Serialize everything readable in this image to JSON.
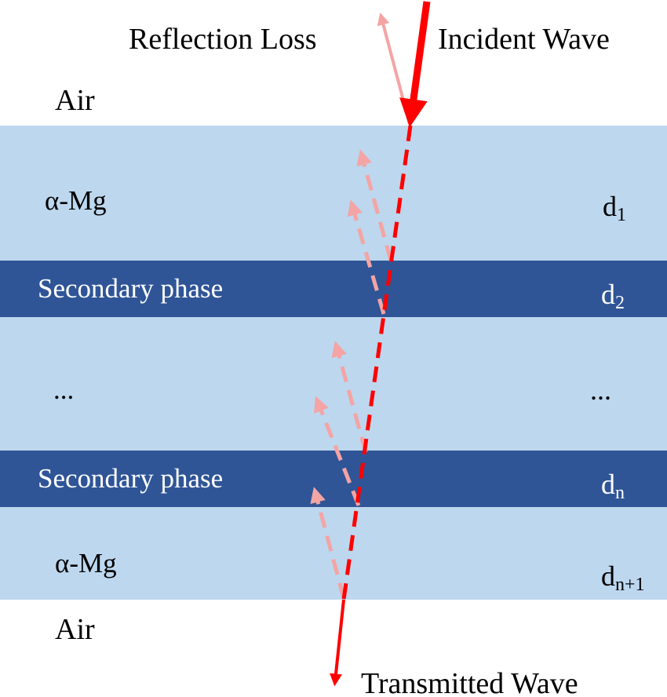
{
  "labels": {
    "reflection_loss": "Reflection Loss",
    "incident_wave": "Incident Wave",
    "transmitted_wave": "Transmitted Wave",
    "air_top": "Air",
    "air_bottom": "Air"
  },
  "layers": [
    {
      "material": "α-Mg",
      "thickness_base": "d",
      "thickness_sub": "1"
    },
    {
      "material": "Secondary phase",
      "thickness_base": "d",
      "thickness_sub": "2"
    },
    {
      "material": "...",
      "thickness_base": "...",
      "thickness_sub": ""
    },
    {
      "material": "Secondary phase",
      "thickness_base": "d",
      "thickness_sub": "n"
    },
    {
      "material": "α-Mg",
      "thickness_base": "d",
      "thickness_sub": "n+1"
    }
  ],
  "colors": {
    "alpha_mg": "#bdd7ee",
    "secondary_phase": "#2f5597",
    "incident_ray": "#ff0000",
    "reflected_ray": "#f4a4a4",
    "secondary_text": "#ffffff"
  }
}
